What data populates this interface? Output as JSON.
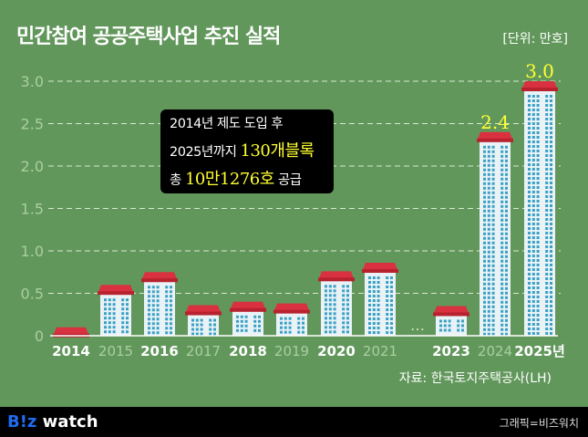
{
  "header": {
    "title": "민간참여 공공주택사업 추진 실적",
    "unit": "[단위: 만호]"
  },
  "callout": {
    "line1": "2014년 제도 도입 후",
    "line2_pre": "2025년까지 ",
    "line2_hl": "130개블록",
    "line3_pre": "총 ",
    "line3_hl": "10만1276호",
    "line3_post": " 공급"
  },
  "source": "자료: 한국토지주택공사(LH)",
  "footer": {
    "logo_brand": "B!z",
    "logo_rest": " watch",
    "credit": "그래픽=비즈워치"
  },
  "colors": {
    "background": "#62975c",
    "roof": "#d9313f",
    "building": "#e9f3f7",
    "window": "#3aa0c4",
    "highlight_label": "#ffff33"
  },
  "chart_data": {
    "type": "bar",
    "categories": [
      "2014",
      "2015",
      "2016",
      "2017",
      "2018",
      "2019",
      "2020",
      "2021",
      "…",
      "2023",
      "2024",
      "2025년"
    ],
    "values": [
      0.1,
      0.6,
      0.75,
      0.36,
      0.4,
      0.38,
      0.76,
      0.86,
      null,
      0.35,
      2.4,
      3.0
    ],
    "data_labels": {
      "2024": "2.4",
      "2025년": "3.0"
    },
    "yticks": [
      "0",
      "0.5",
      "1.0",
      "1.5",
      "2.0",
      "2.5",
      "3.0"
    ],
    "ylim": [
      0,
      3.0
    ],
    "grid": true,
    "bar_style": "building icons"
  }
}
